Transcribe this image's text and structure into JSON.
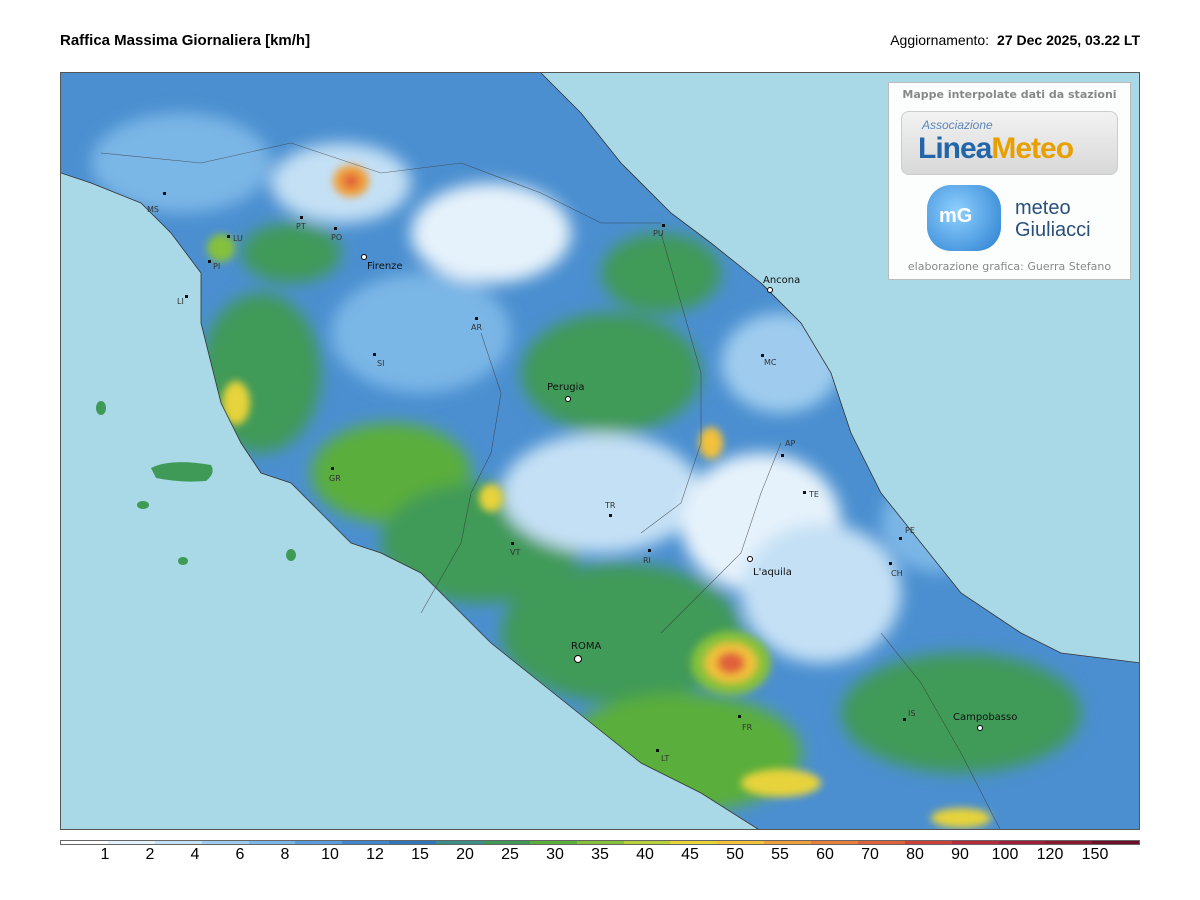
{
  "header": {
    "title": "Raffica Massima Giornaliera [km/h]",
    "update_label": "Aggiornamento:",
    "update_value": "27 Dec 2025, 03.22 LT"
  },
  "logo_box": {
    "header": "Mappe interpolate dati da stazioni",
    "lm_assoc": "Associazione",
    "lm_name_a": "Linea",
    "lm_name_b": "Meteo",
    "mg_mark": "mG",
    "mg_line1": "meteo",
    "mg_line2": "Giuliacci",
    "credit": "elaborazione grafica: Guerra Stefano"
  },
  "cities": [
    {
      "id": "firenze",
      "label": "Firenze"
    },
    {
      "id": "ancona",
      "label": "Ancona"
    },
    {
      "id": "perugia",
      "label": "Perugia"
    },
    {
      "id": "laquila",
      "label": "L'aquila"
    },
    {
      "id": "roma",
      "label": "ROMA"
    },
    {
      "id": "campobasso",
      "label": "Campobasso"
    }
  ],
  "provinces": [
    {
      "id": "ms",
      "label": "MS"
    },
    {
      "id": "lu",
      "label": "LU"
    },
    {
      "id": "pi",
      "label": "PI"
    },
    {
      "id": "li",
      "label": "LI"
    },
    {
      "id": "pt",
      "label": "PT"
    },
    {
      "id": "po",
      "label": "PO"
    },
    {
      "id": "pu",
      "label": "PU"
    },
    {
      "id": "ar",
      "label": "AR"
    },
    {
      "id": "si",
      "label": "SI"
    },
    {
      "id": "mc",
      "label": "MC"
    },
    {
      "id": "ap",
      "label": "AP"
    },
    {
      "id": "te",
      "label": "TE"
    },
    {
      "id": "gr",
      "label": "GR"
    },
    {
      "id": "tr",
      "label": "TR"
    },
    {
      "id": "vt",
      "label": "VT"
    },
    {
      "id": "ri",
      "label": "RI"
    },
    {
      "id": "pe",
      "label": "PE"
    },
    {
      "id": "ch",
      "label": "CH"
    },
    {
      "id": "fr",
      "label": "FR"
    },
    {
      "id": "lt",
      "label": "LT"
    },
    {
      "id": "is",
      "label": "IS"
    }
  ],
  "legend": {
    "ticks": [
      "1",
      "2",
      "4",
      "6",
      "8",
      "10",
      "12",
      "15",
      "20",
      "25",
      "30",
      "35",
      "40",
      "45",
      "50",
      "55",
      "60",
      "70",
      "80",
      "90",
      "100",
      "120",
      "150"
    ],
    "colors": [
      "#ffffff",
      "#e6f2fb",
      "#c4e0f5",
      "#9fccee",
      "#7ab6e6",
      "#5a9ddc",
      "#3f86cf",
      "#2f77bd",
      "#3b8f88",
      "#3f9a58",
      "#5aae3a",
      "#86c13a",
      "#b8d23a",
      "#e7d33a",
      "#f3c13a",
      "#f0a03a",
      "#e8803a",
      "#e0603a",
      "#d0403a",
      "#b82a3a",
      "#a01e3a",
      "#8a1830",
      "#701028"
    ],
    "scale_note": "km/h"
  },
  "colors": {
    "sea": "#a9d8e6",
    "land_base": "#4b8fd0"
  }
}
